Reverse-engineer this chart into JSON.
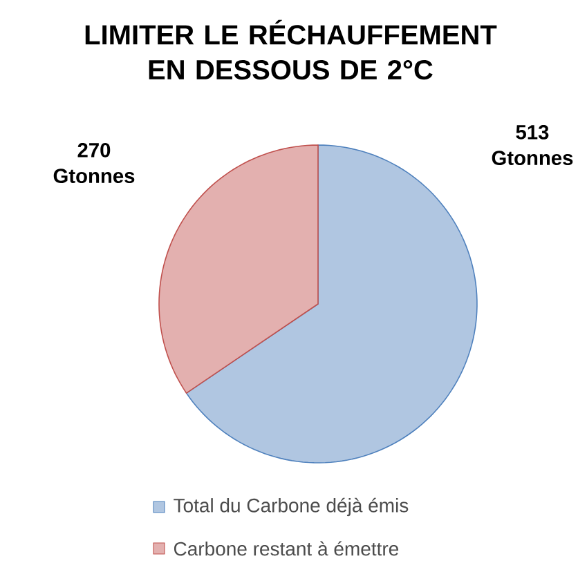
{
  "chart_data": {
    "type": "pie",
    "title": "LIMITER LE RÉCHAUFFEMENT EN DESSOUS DE 2°C",
    "categories": [
      "Total du Carbone déjà émis",
      "Carbone restant à émettre"
    ],
    "values": [
      513,
      270
    ],
    "colors": [
      "#4f81bd",
      "#c0504d"
    ],
    "value_labels": [
      "513 Gtonnes",
      "270 Gtonnes"
    ],
    "legend": "bottom"
  }
}
